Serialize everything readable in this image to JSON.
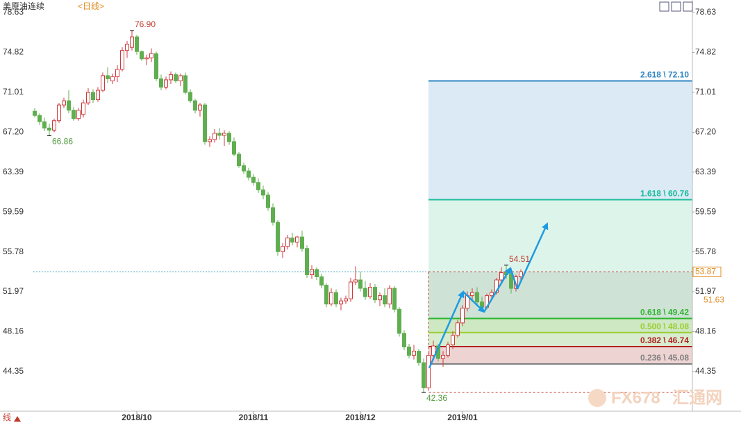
{
  "chart_data": {
    "type": "candlestick",
    "title": "美原油连续",
    "subtitle": "<日线>",
    "bottom_left": "线",
    "watermark": [
      "FX678",
      "汇通网"
    ],
    "up_color": "#d0393c",
    "down_color": "#5fae4f",
    "ylim": [
      40.57,
      79.82
    ],
    "yticks": [
      44.35,
      48.16,
      51.97,
      55.78,
      59.59,
      63.39,
      {
        "value": 67.2,
        "label": "67.20"
      },
      71.01,
      74.82,
      78.63
    ],
    "last_price": 53.87,
    "second_price": 51.63,
    "annotations": [
      {
        "value": 76.9,
        "label": "76.90",
        "color": "#c0392b"
      },
      {
        "value": 66.86,
        "label": "66.86",
        "color": "#4f9a3c"
      },
      {
        "value": 42.36,
        "label": "42.36",
        "color": "#4f9a3c"
      },
      {
        "value": 54.51,
        "label": "54.51",
        "color": "#c0392b"
      }
    ],
    "fib_levels": [
      {
        "label": "2.618 \\ 72.10",
        "value": 72.1,
        "color": "#2e86c1"
      },
      {
        "label": "1.618 \\ 60.76",
        "value": 60.76,
        "color": "#1abc9c"
      },
      {
        "label": "0.618 \\ 49.42",
        "value": 49.42,
        "color": "#2db52d"
      },
      {
        "label": "0.500 \\ 48.08",
        "value": 48.08,
        "color": "#9acd32"
      },
      {
        "label": "0.382 \\ 46.74",
        "value": 46.74,
        "color": "#b22222"
      },
      {
        "label": "0.236 \\ 45.08",
        "value": 45.08,
        "color": "#808080"
      }
    ],
    "fib_fills": [
      "#eed3d3",
      "#d8eccf",
      "#cde8c2",
      "#cfe2d6",
      "#ddf4ea",
      "#dbeaf5"
    ],
    "categories": [
      null,
      null,
      null,
      null,
      null,
      null,
      null,
      null,
      null,
      null,
      null,
      null,
      null,
      null,
      null,
      null,
      null,
      null,
      null,
      null,
      null,
      "2018/10",
      null,
      null,
      null,
      null,
      null,
      null,
      null,
      null,
      null,
      null,
      null,
      null,
      null,
      null,
      null,
      null,
      null,
      null,
      null,
      null,
      null,
      null,
      null,
      "2018/11",
      null,
      null,
      null,
      null,
      null,
      null,
      null,
      null,
      null,
      null,
      null,
      null,
      null,
      null,
      null,
      null,
      null,
      null,
      null,
      null,
      null,
      "2018/12",
      null,
      null,
      null,
      null,
      null,
      null,
      null,
      null,
      null,
      null,
      null,
      null,
      null,
      null,
      null,
      null,
      null,
      null,
      null,
      null,
      "2019/01",
      null,
      null,
      null,
      null,
      null,
      null,
      null,
      null,
      null,
      null,
      null,
      null
    ],
    "ohlc": [
      [
        69.2,
        69.5,
        68.6,
        68.8
      ],
      [
        68.8,
        69.0,
        67.9,
        68.2
      ],
      [
        68.2,
        68.6,
        67.3,
        67.6
      ],
      [
        67.6,
        68.0,
        66.86,
        67.4
      ],
      [
        67.4,
        68.5,
        67.2,
        68.3
      ],
      [
        68.3,
        70.0,
        68.1,
        69.8
      ],
      [
        69.8,
        70.5,
        69.5,
        70.2
      ],
      [
        70.2,
        71.2,
        69.0,
        69.3
      ],
      [
        69.3,
        69.6,
        68.3,
        68.5
      ],
      [
        68.5,
        69.5,
        68.3,
        69.3
      ],
      [
        68.9,
        70.3,
        68.6,
        70.0
      ],
      [
        70.0,
        71.4,
        69.8,
        71.0
      ],
      [
        71.0,
        71.3,
        70.0,
        70.3
      ],
      [
        70.3,
        71.5,
        70.1,
        71.2
      ],
      [
        71.2,
        72.9,
        71.0,
        72.6
      ],
      [
        72.6,
        73.4,
        71.9,
        72.3
      ],
      [
        72.1,
        72.8,
        71.8,
        72.5
      ],
      [
        72.5,
        73.6,
        72.0,
        73.2
      ],
      [
        73.2,
        75.3,
        73.0,
        75.0
      ],
      [
        75.0,
        75.9,
        74.3,
        75.6
      ],
      [
        75.3,
        76.9,
        75.0,
        76.3
      ],
      [
        76.3,
        76.5,
        74.6,
        74.9
      ],
      [
        74.9,
        75.0,
        74.0,
        74.2
      ],
      [
        74.2,
        74.6,
        73.6,
        74.3
      ],
      [
        74.3,
        75.2,
        73.9,
        74.7
      ],
      [
        74.7,
        74.9,
        72.1,
        72.3
      ],
      [
        72.3,
        72.7,
        71.2,
        71.5
      ],
      [
        71.5,
        72.5,
        71.3,
        72.2
      ],
      [
        72.2,
        73.0,
        71.8,
        72.7
      ],
      [
        72.7,
        72.9,
        71.9,
        72.1
      ],
      [
        72.1,
        72.8,
        71.6,
        72.6
      ],
      [
        72.6,
        72.9,
        70.8,
        71.0
      ],
      [
        71.0,
        71.3,
        70.0,
        70.2
      ],
      [
        70.2,
        70.4,
        69.0,
        69.3
      ],
      [
        69.3,
        70.0,
        68.7,
        69.8
      ],
      [
        69.8,
        70.0,
        66.0,
        66.3
      ],
      [
        66.3,
        66.8,
        65.8,
        66.5
      ],
      [
        66.5,
        67.5,
        66.2,
        67.1
      ],
      [
        67.1,
        67.6,
        66.5,
        66.9
      ],
      [
        66.9,
        67.4,
        65.9,
        67.1
      ],
      [
        67.1,
        67.3,
        66.0,
        66.3
      ],
      [
        66.3,
        66.7,
        64.9,
        65.1
      ],
      [
        65.1,
        65.3,
        63.8,
        64.0
      ],
      [
        64.0,
        64.3,
        63.2,
        63.5
      ],
      [
        63.5,
        63.8,
        62.6,
        62.9
      ],
      [
        62.9,
        63.2,
        62.1,
        62.4
      ],
      [
        62.4,
        62.8,
        61.4,
        61.7
      ],
      [
        61.7,
        62.1,
        60.8,
        61.2
      ],
      [
        61.2,
        61.5,
        59.7,
        60.0
      ],
      [
        60.0,
        60.4,
        58.3,
        58.6
      ],
      [
        58.6,
        58.8,
        55.4,
        55.8
      ],
      [
        55.8,
        56.6,
        55.2,
        56.3
      ],
      [
        56.3,
        57.4,
        56.0,
        57.1
      ],
      [
        57.1,
        57.6,
        56.4,
        56.7
      ],
      [
        56.7,
        57.3,
        56.2,
        57.2
      ],
      [
        57.2,
        57.8,
        55.8,
        56.1
      ],
      [
        56.1,
        56.4,
        53.3,
        53.6
      ],
      [
        53.6,
        54.5,
        53.2,
        54.1
      ],
      [
        54.1,
        54.3,
        53.1,
        53.4
      ],
      [
        53.4,
        53.7,
        52.3,
        52.6
      ],
      [
        52.6,
        52.8,
        50.5,
        50.8
      ],
      [
        50.8,
        52.3,
        50.6,
        51.9
      ],
      [
        51.9,
        52.2,
        50.5,
        50.8
      ],
      [
        50.8,
        51.4,
        50.2,
        51.1
      ],
      [
        51.1,
        51.6,
        50.8,
        51.3
      ],
      [
        51.3,
        53.3,
        51.0,
        52.9
      ],
      [
        52.9,
        54.4,
        52.6,
        53.1
      ],
      [
        53.1,
        53.9,
        52.0,
        52.3
      ],
      [
        52.3,
        53.0,
        51.2,
        51.5
      ],
      [
        51.5,
        52.8,
        51.3,
        52.4
      ],
      [
        52.4,
        52.7,
        50.9,
        51.2
      ],
      [
        51.2,
        51.9,
        50.6,
        51.6
      ],
      [
        51.6,
        52.3,
        50.5,
        50.8
      ],
      [
        50.8,
        52.6,
        50.4,
        52.3
      ],
      [
        52.3,
        52.5,
        50.0,
        50.3
      ],
      [
        50.3,
        50.5,
        47.7,
        48.0
      ],
      [
        48.0,
        48.3,
        46.4,
        46.7
      ],
      [
        46.7,
        47.0,
        45.6,
        45.9
      ],
      [
        45.9,
        46.9,
        45.5,
        46.3
      ],
      [
        46.3,
        46.5,
        44.9,
        45.2
      ],
      [
        45.2,
        45.6,
        42.36,
        42.8
      ],
      [
        42.8,
        46.2,
        42.6,
        45.9
      ],
      [
        45.9,
        47.3,
        45.5,
        46.8
      ],
      [
        46.8,
        47.0,
        45.3,
        45.6
      ],
      [
        45.6,
        46.3,
        44.8,
        45.9
      ],
      [
        45.9,
        47.2,
        45.7,
        46.9
      ],
      [
        46.9,
        48.2,
        46.5,
        47.8
      ],
      [
        47.8,
        49.3,
        47.6,
        49.0
      ],
      [
        49.0,
        50.7,
        48.7,
        50.4
      ],
      [
        50.4,
        52.0,
        50.1,
        51.6
      ],
      [
        51.6,
        52.3,
        51.0,
        51.9
      ],
      [
        51.9,
        52.4,
        50.6,
        51.0
      ],
      [
        51.0,
        51.5,
        50.1,
        50.5
      ],
      [
        50.5,
        51.8,
        50.3,
        51.6
      ],
      [
        51.6,
        52.2,
        51.2,
        51.9
      ],
      [
        51.9,
        53.3,
        51.7,
        53.1
      ],
      [
        53.1,
        54.3,
        52.9,
        53.8
      ],
      [
        53.8,
        54.51,
        53.2,
        53.6
      ],
      [
        53.6,
        53.9,
        51.8,
        52.3
      ],
      [
        52.3,
        53.6,
        52.0,
        53.4
      ],
      [
        53.4,
        54.1,
        53.0,
        53.87
      ]
    ]
  }
}
